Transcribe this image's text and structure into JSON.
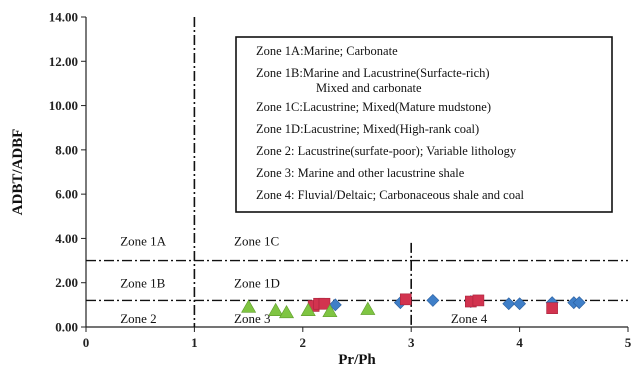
{
  "chart_data": {
    "type": "scatter",
    "title": "",
    "xlabel": "Pr/Ph",
    "ylabel": "ADBT/ADBF",
    "xlim": [
      0,
      5
    ],
    "ylim": [
      0,
      14
    ],
    "x_ticks": [
      "0",
      "1",
      "2",
      "3",
      "4",
      "5"
    ],
    "y_ticks": [
      "0.00",
      "2.00",
      "4.00",
      "6.00",
      "8.00",
      "10.00",
      "12.00",
      "14.00"
    ],
    "grid": false,
    "zone_boundaries": {
      "vertical_dashdot": [
        1,
        3
      ],
      "horizontal_dashdot": [
        3,
        1.2
      ]
    },
    "zone_labels": [
      {
        "label": "Zone 1A",
        "x": 0.5,
        "y": 3.9
      },
      {
        "label": "Zone 1B",
        "x": 0.5,
        "y": 2.0
      },
      {
        "label": "Zone 2",
        "x": 0.5,
        "y": 0.4
      },
      {
        "label": "Zone 1C",
        "x": 1.55,
        "y": 3.9
      },
      {
        "label": "Zone 1D",
        "x": 1.55,
        "y": 2.0
      },
      {
        "label": "Zone 3",
        "x": 1.55,
        "y": 0.4
      },
      {
        "label": "Zone 4",
        "x": 3.55,
        "y": 0.4
      }
    ],
    "legend_text": [
      "Zone 1A:Marine; Carbonate",
      "Zone 1B:Marine and Lacustrine(Surfacte-rich)",
      "Mixed and carbonate",
      "Zone 1C:Lacustrine; Mixed(Mature mudstone)",
      "Zone 1D:Lacustrine; Mixed(High-rank coal)",
      "Zone 2: Lacustrine(surfate-poor); Variable lithology",
      "Zone 3: Marine and other lacustrine shale",
      "Zone 4: Fluvial/Deltaic; Carbonaceous shale and coal"
    ],
    "legend_position": "top-right",
    "series": [
      {
        "marker": "diamond",
        "color": "#3f7fc8",
        "points": [
          [
            2.3,
            1.0
          ],
          [
            2.9,
            1.1
          ],
          [
            3.2,
            1.2
          ],
          [
            3.55,
            1.15
          ],
          [
            3.9,
            1.05
          ],
          [
            4.0,
            1.05
          ],
          [
            4.3,
            1.1
          ],
          [
            4.5,
            1.1
          ],
          [
            4.55,
            1.1
          ]
        ]
      },
      {
        "marker": "square",
        "color": "#d2334f",
        "points": [
          [
            2.1,
            0.95
          ],
          [
            2.15,
            1.05
          ],
          [
            2.2,
            1.05
          ],
          [
            2.95,
            1.25
          ],
          [
            3.55,
            1.15
          ],
          [
            3.62,
            1.2
          ],
          [
            4.3,
            0.85
          ]
        ]
      },
      {
        "marker": "triangle",
        "color": "#7fc542",
        "points": [
          [
            1.5,
            0.9
          ],
          [
            1.75,
            0.75
          ],
          [
            1.85,
            0.65
          ],
          [
            2.05,
            0.75
          ],
          [
            2.25,
            0.7
          ],
          [
            2.6,
            0.8
          ]
        ]
      }
    ]
  }
}
